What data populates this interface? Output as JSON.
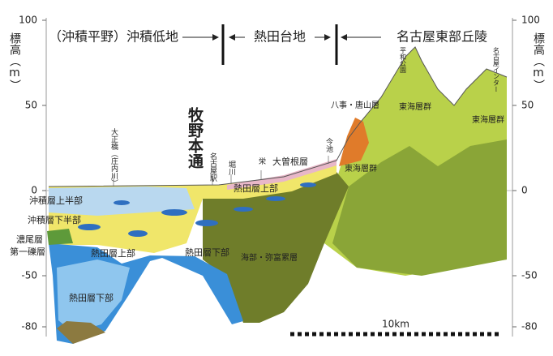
{
  "header": {
    "segments": [
      "（沖積平野）沖積低地",
      "熱田台地",
      "名古屋東部丘陵"
    ]
  },
  "axis": {
    "label": "標高（m）",
    "ticks": [
      100,
      50,
      0,
      -50,
      -80
    ]
  },
  "places": [
    "大正橋（庄内川）",
    "牧野本通",
    "名古屋駅",
    "堀川",
    "栄",
    "今池",
    "平和公園",
    "名古屋インター"
  ],
  "layers": [
    "沖積層上半部",
    "沖積層下半部",
    "濃尾層",
    "第一礫層",
    "熱田層上部",
    "熱田層上部",
    "熱田層下部",
    "熱田層下部",
    "大曽根層",
    "海部・弥富累層",
    "八事・唐山層",
    "東海層群",
    "東海層群",
    "東海層群"
  ],
  "scale": {
    "label": "10km"
  }
}
